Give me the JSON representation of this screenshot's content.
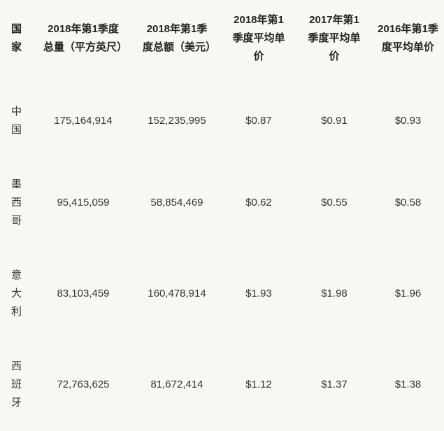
{
  "table": {
    "headers": [
      "国家",
      "2018年第1季度总量（平方英尺）",
      "2018年第1季度总额（美元）",
      "2018年第1季度平均单价",
      "2017年第1季度平均单价",
      "2016年第1季度平均单价"
    ],
    "rows": [
      [
        "中国",
        "175,164,914",
        "152,235,995",
        "$0.87",
        "$0.91",
        "$0.93"
      ],
      [
        "墨西哥",
        "95,415,059",
        "58,854,469",
        "$0.62",
        "$0.55",
        "$0.58"
      ],
      [
        "意大利",
        "83,103,459",
        "160,478,914",
        "$1.93",
        "$1.98",
        "$1.96"
      ],
      [
        "西班牙",
        "72,763,625",
        "81,672,414",
        "$1.12",
        "$1.37",
        "$1.38"
      ]
    ]
  }
}
